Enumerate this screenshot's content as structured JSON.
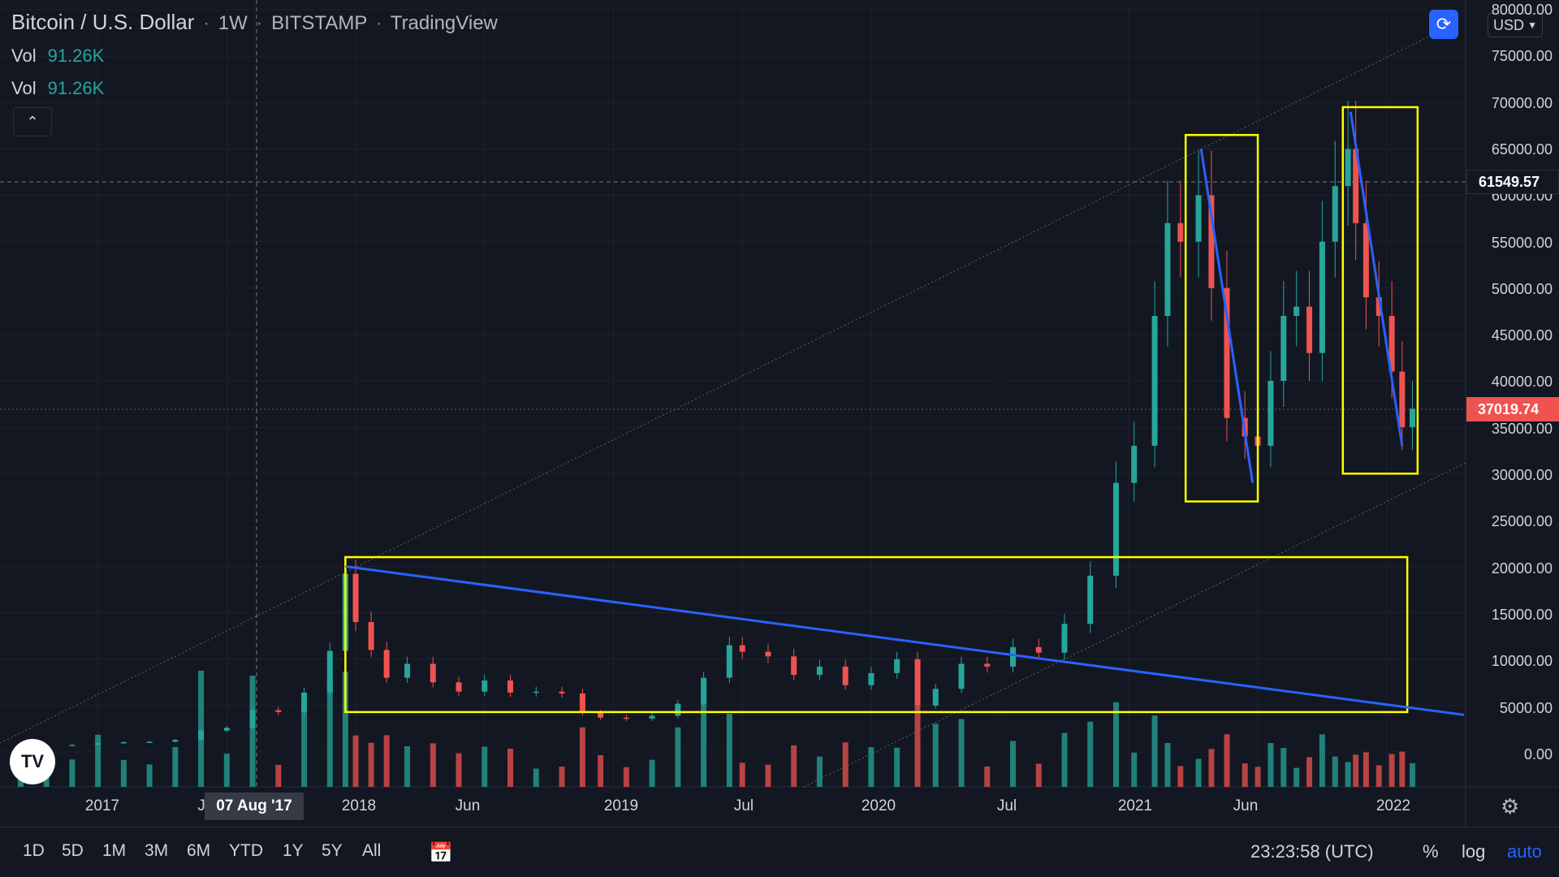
{
  "header": {
    "symbol": "Bitcoin / U.S. Dollar",
    "interval": "1W",
    "exchange": "BITSTAMP",
    "source": "TradingView",
    "separator": "·"
  },
  "volume_legend": [
    {
      "label": "Vol",
      "value": "91.26K"
    },
    {
      "label": "Vol",
      "value": "91.26K"
    }
  ],
  "currency": "USD",
  "price_scale": {
    "labels": [
      "80000.00",
      "75000.00",
      "70000.00",
      "65000.00",
      "60000.00",
      "55000.00",
      "50000.00",
      "45000.00",
      "40000.00",
      "35000.00",
      "30000.00",
      "25000.00",
      "20000.00",
      "15000.00",
      "10000.00",
      "5000.00",
      "0.00"
    ],
    "crosshair_price": "61549.57",
    "last_price": "37019.74"
  },
  "time_scale": {
    "labels": [
      "2017",
      "J",
      "2018",
      "Jun",
      "2019",
      "Jul",
      "2020",
      "Jul",
      "2021",
      "Jun",
      "2022"
    ],
    "crosshair_date": "07 Aug '17"
  },
  "bottom_toolbar": {
    "ranges": [
      "1D",
      "5D",
      "1M",
      "3M",
      "6M",
      "YTD",
      "1Y",
      "5Y",
      "All"
    ],
    "clock": "23:23:58 (UTC)",
    "percent": "%",
    "log": "log",
    "auto": "auto"
  },
  "colors": {
    "background": "#131722",
    "up": "#26a69a",
    "down": "#ef5350",
    "trendline": "#2962ff",
    "box": "#ffff00",
    "accent": "#2962ff"
  },
  "icons": [
    "tradingview-logo-icon",
    "chevron-up-icon",
    "sync-icon",
    "gear-icon",
    "date-range-icon",
    "chevron-down-icon"
  ],
  "chart_data": {
    "type": "candlestick",
    "title": "Bitcoin / U.S. Dollar",
    "ylim": [
      0,
      80000
    ],
    "xlim": [
      2016.62,
      2022.3
    ],
    "grid": true,
    "y_scale": "linear",
    "candles": [
      {
        "x": 2016.7,
        "o": 600,
        "c": 630
      },
      {
        "x": 2016.8,
        "o": 630,
        "c": 700
      },
      {
        "x": 2016.9,
        "o": 700,
        "c": 760
      },
      {
        "x": 2017.0,
        "o": 760,
        "c": 970
      },
      {
        "x": 2017.1,
        "o": 970,
        "c": 1050
      },
      {
        "x": 2017.2,
        "o": 1050,
        "c": 1100
      },
      {
        "x": 2017.3,
        "o": 1100,
        "c": 1300
      },
      {
        "x": 2017.4,
        "o": 1300,
        "c": 2300
      },
      {
        "x": 2017.5,
        "o": 2300,
        "c": 2600
      },
      {
        "x": 2017.6,
        "o": 2600,
        "c": 4500
      },
      {
        "x": 2017.7,
        "o": 4500,
        "c": 4300
      },
      {
        "x": 2017.8,
        "o": 4300,
        "c": 6400
      },
      {
        "x": 2017.9,
        "o": 6400,
        "c": 10900
      },
      {
        "x": 2017.96,
        "o": 10900,
        "c": 19200
      },
      {
        "x": 2018.0,
        "o": 19200,
        "c": 14000
      },
      {
        "x": 2018.06,
        "o": 14000,
        "c": 11000
      },
      {
        "x": 2018.12,
        "o": 11000,
        "c": 8000
      },
      {
        "x": 2018.2,
        "o": 8000,
        "c": 9500
      },
      {
        "x": 2018.3,
        "o": 9500,
        "c": 7500
      },
      {
        "x": 2018.4,
        "o": 7500,
        "c": 6500
      },
      {
        "x": 2018.5,
        "o": 6500,
        "c": 7700
      },
      {
        "x": 2018.6,
        "o": 7700,
        "c": 6400
      },
      {
        "x": 2018.7,
        "o": 6400,
        "c": 6500
      },
      {
        "x": 2018.8,
        "o": 6500,
        "c": 6300
      },
      {
        "x": 2018.88,
        "o": 6300,
        "c": 4200
      },
      {
        "x": 2018.95,
        "o": 4200,
        "c": 3700
      },
      {
        "x": 2019.05,
        "o": 3700,
        "c": 3600
      },
      {
        "x": 2019.15,
        "o": 3600,
        "c": 3900
      },
      {
        "x": 2019.25,
        "o": 3900,
        "c": 5200
      },
      {
        "x": 2019.35,
        "o": 5200,
        "c": 8000
      },
      {
        "x": 2019.45,
        "o": 8000,
        "c": 11500
      },
      {
        "x": 2019.5,
        "o": 11500,
        "c": 10800
      },
      {
        "x": 2019.6,
        "o": 10800,
        "c": 10300
      },
      {
        "x": 2019.7,
        "o": 10300,
        "c": 8300
      },
      {
        "x": 2019.8,
        "o": 8300,
        "c": 9200
      },
      {
        "x": 2019.9,
        "o": 9200,
        "c": 7200
      },
      {
        "x": 2020.0,
        "o": 7200,
        "c": 8500
      },
      {
        "x": 2020.1,
        "o": 8500,
        "c": 10000
      },
      {
        "x": 2020.18,
        "o": 10000,
        "c": 5000
      },
      {
        "x": 2020.25,
        "o": 5000,
        "c": 6800
      },
      {
        "x": 2020.35,
        "o": 6800,
        "c": 9500
      },
      {
        "x": 2020.45,
        "o": 9500,
        "c": 9200
      },
      {
        "x": 2020.55,
        "o": 9200,
        "c": 11300
      },
      {
        "x": 2020.65,
        "o": 11300,
        "c": 10700
      },
      {
        "x": 2020.75,
        "o": 10700,
        "c": 13800
      },
      {
        "x": 2020.85,
        "o": 13800,
        "c": 19000
      },
      {
        "x": 2020.95,
        "o": 19000,
        "c": 29000
      },
      {
        "x": 2021.02,
        "o": 29000,
        "c": 33000
      },
      {
        "x": 2021.1,
        "o": 33000,
        "c": 47000
      },
      {
        "x": 2021.15,
        "o": 47000,
        "c": 57000
      },
      {
        "x": 2021.2,
        "o": 57000,
        "c": 55000
      },
      {
        "x": 2021.27,
        "o": 55000,
        "c": 60000
      },
      {
        "x": 2021.32,
        "o": 60000,
        "c": 50000
      },
      {
        "x": 2021.38,
        "o": 50000,
        "c": 36000
      },
      {
        "x": 2021.45,
        "o": 36000,
        "c": 34000
      },
      {
        "x": 2021.5,
        "o": 34000,
        "c": 33000
      },
      {
        "x": 2021.55,
        "o": 33000,
        "c": 40000
      },
      {
        "x": 2021.6,
        "o": 40000,
        "c": 47000
      },
      {
        "x": 2021.65,
        "o": 47000,
        "c": 48000
      },
      {
        "x": 2021.7,
        "o": 48000,
        "c": 43000
      },
      {
        "x": 2021.75,
        "o": 43000,
        "c": 55000
      },
      {
        "x": 2021.8,
        "o": 55000,
        "c": 61000
      },
      {
        "x": 2021.85,
        "o": 61000,
        "c": 65000
      },
      {
        "x": 2021.88,
        "o": 65000,
        "c": 57000
      },
      {
        "x": 2021.92,
        "o": 57000,
        "c": 49000
      },
      {
        "x": 2021.97,
        "o": 49000,
        "c": 47000
      },
      {
        "x": 2022.02,
        "o": 47000,
        "c": 41000
      },
      {
        "x": 2022.06,
        "o": 41000,
        "c": 35000
      },
      {
        "x": 2022.1,
        "o": 35000,
        "c": 37000
      }
    ],
    "annotations": [
      {
        "type": "box",
        "color": "yellow",
        "x0": 2017.96,
        "x1": 2022.08,
        "y0": 4300,
        "y1": 21000
      },
      {
        "type": "box",
        "color": "yellow",
        "x0": 2021.22,
        "x1": 2021.5,
        "y0": 27000,
        "y1": 66500
      },
      {
        "type": "box",
        "color": "yellow",
        "x0": 2021.83,
        "x1": 2022.12,
        "y0": 30000,
        "y1": 69500
      },
      {
        "type": "trendline",
        "color": "blue",
        "x0": 2017.96,
        "y0": 20000,
        "x1": 2022.3,
        "y1": 4000
      },
      {
        "type": "trendline",
        "color": "blue",
        "x0": 2021.28,
        "y0": 65000,
        "x1": 2021.48,
        "y1": 29000
      },
      {
        "type": "trendline",
        "color": "blue",
        "x0": 2021.86,
        "y0": 69000,
        "x1": 2022.06,
        "y1": 33000
      }
    ]
  }
}
